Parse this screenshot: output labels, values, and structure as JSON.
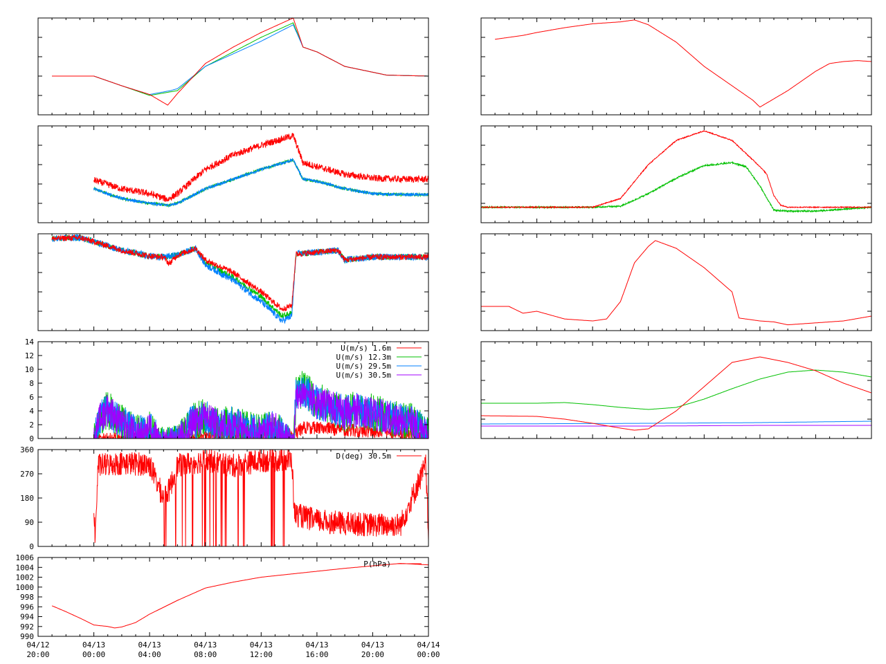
{
  "time_axis": {
    "range_hours": [
      -4,
      24
    ],
    "labels": [
      {
        "hour": -4,
        "date": "04/12",
        "time": "20:00"
      },
      {
        "hour": 0,
        "date": "04/13",
        "time": "00:00"
      },
      {
        "hour": 4,
        "date": "04/13",
        "time": "04:00"
      },
      {
        "hour": 8,
        "date": "04/13",
        "time": "08:00"
      },
      {
        "hour": 12,
        "date": "04/13",
        "time": "12:00"
      },
      {
        "hour": 16,
        "date": "04/13",
        "time": "16:00"
      },
      {
        "hour": 20,
        "date": "04/13",
        "time": "20:00"
      },
      {
        "hour": 24,
        "date": "04/14",
        "time": "00:00"
      }
    ]
  },
  "colors": {
    "red": "#ff0000",
    "green": "#00c000",
    "blue": "#0080ff",
    "purple": "#a000ff"
  },
  "chart_data": [
    {
      "id": "L1",
      "type": "line",
      "ylim": [
        0,
        10
      ],
      "series": [
        {
          "color": "#00c000",
          "x": [
            -3,
            0,
            2,
            4,
            6,
            8,
            10,
            12,
            14.3,
            15,
            16,
            18,
            21,
            24
          ],
          "y": [
            4,
            4,
            3,
            2,
            2.5,
            5,
            6.5,
            8,
            9.5,
            7,
            6.5,
            5,
            4.1,
            4
          ]
        },
        {
          "color": "#0080ff",
          "x": [
            -3,
            0,
            2,
            4,
            5.5,
            6,
            8,
            10,
            12,
            14.3,
            15,
            16,
            18,
            21,
            24
          ],
          "y": [
            4,
            4,
            3,
            2.1,
            2.5,
            2.7,
            5,
            6.3,
            7.6,
            9.3,
            7,
            6.5,
            5,
            4.1,
            4
          ]
        },
        {
          "color": "#ff0000",
          "x": [
            -3,
            0,
            2,
            4,
            5.3,
            6,
            8,
            10,
            12,
            14.3,
            15,
            16,
            18,
            21,
            24
          ],
          "y": [
            4,
            4,
            3,
            2.1,
            1,
            2.2,
            5.3,
            7,
            8.5,
            10,
            7,
            6.5,
            5,
            4.1,
            4
          ]
        }
      ]
    },
    {
      "id": "L2",
      "type": "line",
      "ylim": [
        0,
        10
      ],
      "series": [
        {
          "color": "#00c000",
          "x": [
            0,
            2,
            4,
            5.3,
            6,
            8,
            10,
            12,
            14.3,
            15,
            16,
            18,
            20,
            22,
            24
          ],
          "y": [
            3.5,
            2.5,
            2,
            1.8,
            2,
            3.5,
            4.5,
            5.5,
            6.5,
            4.5,
            4.3,
            3.5,
            3,
            2.9,
            2.9
          ]
        },
        {
          "color": "#0080ff",
          "x": [
            0,
            2,
            4,
            5.3,
            6,
            8,
            10,
            12,
            14.3,
            15,
            16,
            18,
            20,
            22,
            24
          ],
          "y": [
            3.5,
            2.5,
            2,
            1.8,
            2,
            3.5,
            4.5,
            5.5,
            6.5,
            4.5,
            4.3,
            3.5,
            3,
            2.9,
            2.9
          ]
        },
        {
          "color": "#ff0000",
          "x": [
            0,
            2,
            4,
            5.3,
            6,
            8,
            10,
            12,
            14.3,
            15,
            16,
            18,
            20,
            22,
            24
          ],
          "y": [
            4.4,
            3.5,
            3,
            2.4,
            3,
            5.5,
            7,
            8,
            9,
            6.2,
            5.8,
            5,
            4.6,
            4.5,
            4.5
          ]
        }
      ]
    },
    {
      "id": "L3",
      "type": "line",
      "ylim": [
        0,
        10
      ],
      "series": [
        {
          "color": "#00c000",
          "x": [
            -3,
            -1,
            0,
            2,
            4,
            5,
            6,
            7.3,
            8,
            10,
            12,
            13.5,
            14.2,
            14.5,
            16,
            17.5,
            18,
            20,
            24
          ],
          "y": [
            9.5,
            9.6,
            9.2,
            8.3,
            7.7,
            7.6,
            7.8,
            8.5,
            7,
            5.5,
            3.5,
            1.5,
            1.8,
            7.9,
            8.1,
            8.3,
            7.3,
            7.6,
            7.6
          ]
        },
        {
          "color": "#0080ff",
          "x": [
            -3,
            -1,
            0,
            2,
            4,
            5,
            6,
            7.3,
            8,
            10,
            12,
            13.5,
            14.2,
            14.5,
            16,
            17.5,
            18,
            20,
            24
          ],
          "y": [
            9.5,
            9.6,
            9.2,
            8.3,
            7.7,
            7.6,
            7.8,
            8.5,
            6.8,
            5.2,
            3,
            1,
            1.5,
            7.9,
            8.1,
            8.3,
            7.3,
            7.6,
            7.6
          ]
        },
        {
          "color": "#ff0000",
          "x": [
            -3,
            -1,
            0,
            2,
            4,
            5,
            5.4,
            6,
            7.3,
            8,
            10,
            12,
            13.5,
            14.2,
            14.5,
            16,
            17.5,
            18,
            20,
            24
          ],
          "y": [
            9.5,
            9.6,
            9.2,
            8.3,
            7.7,
            7.6,
            6.9,
            7.8,
            8.5,
            7.3,
            6,
            4,
            2.2,
            2.6,
            7.9,
            8.1,
            8.3,
            7.3,
            7.6,
            7.6
          ]
        }
      ]
    },
    {
      "id": "U",
      "type": "line",
      "ylim": [
        0,
        14
      ],
      "yticks": [
        "0",
        "2",
        "4",
        "6",
        "8",
        "10",
        "12",
        "14"
      ],
      "legend": "top-right",
      "series": [
        {
          "name": "U(m/s)  1.6m",
          "color": "#ff0000",
          "x": [
            0,
            2,
            4,
            6,
            8,
            10,
            12,
            14.4,
            15,
            16,
            18,
            20,
            22,
            24
          ],
          "y": [
            0.8,
            1,
            0.7,
            0.6,
            1.5,
            1.5,
            1.6,
            1.6,
            2.5,
            2.5,
            2.2,
            2,
            1.8,
            1
          ]
        },
        {
          "name": "U(m/s) 12.3m",
          "color": "#00c000",
          "x": [
            0,
            0.5,
            1,
            2,
            3,
            4,
            5,
            6,
            7,
            8,
            9,
            10,
            11,
            12,
            13,
            14.3,
            14.5,
            15,
            16,
            17,
            18,
            19,
            20,
            21,
            22,
            23,
            24
          ],
          "y": [
            2,
            6,
            7,
            5,
            3.5,
            4,
            1.5,
            2,
            5,
            6,
            4.5,
            5,
            4,
            3.5,
            4.5,
            1,
            9,
            10,
            8,
            7.5,
            6.5,
            7,
            6.5,
            6,
            5.5,
            5,
            3
          ]
        },
        {
          "name": "U(m/s) 29.5m",
          "color": "#0080ff",
          "x": [
            0,
            0.5,
            1,
            2,
            3,
            4,
            5,
            6,
            7,
            8,
            9,
            10,
            11,
            12,
            13,
            14.3,
            14.5,
            15,
            16,
            17,
            18,
            19,
            20,
            21,
            22,
            23,
            24
          ],
          "y": [
            2,
            5.8,
            6.7,
            4.8,
            3.3,
            3.8,
            1.4,
            1.9,
            4.8,
            5.7,
            4.3,
            4.8,
            3.8,
            3.3,
            4.3,
            1,
            8.7,
            9.7,
            7.7,
            7.2,
            6.2,
            6.7,
            6.2,
            5.7,
            5.2,
            4.7,
            2.8
          ]
        },
        {
          "name": "U(m/s) 30.5m",
          "color": "#a000ff",
          "x": [
            0,
            0.5,
            1,
            2,
            3,
            4,
            5,
            6,
            7,
            8,
            9,
            10,
            11,
            12,
            13,
            14.3,
            14.5,
            15,
            16,
            17,
            18,
            19,
            20,
            21,
            22,
            23,
            24
          ],
          "y": [
            2,
            5.5,
            6.5,
            4.5,
            3,
            3.5,
            1.2,
            1.8,
            4.5,
            5.5,
            4,
            4.5,
            3.5,
            3,
            4,
            1,
            8.5,
            9.5,
            7.5,
            7,
            6,
            6.5,
            6,
            5.5,
            5,
            4.5,
            2.5
          ]
        }
      ]
    },
    {
      "id": "D",
      "type": "line",
      "ylim": [
        0,
        360
      ],
      "yticks": [
        "0",
        "90",
        "180",
        "270",
        "360"
      ],
      "legend": "top-right",
      "series": [
        {
          "name": "D(deg)  30.5m",
          "color": "#ff0000",
          "x": [
            0,
            0.1,
            0.3,
            2,
            4,
            4.5,
            5,
            5.4,
            6,
            8,
            10,
            12,
            14.2,
            14.4,
            16,
            18,
            20,
            22,
            23.8,
            24
          ],
          "y": [
            140,
            30,
            300,
            310,
            305,
            240,
            180,
            210,
            300,
            320,
            300,
            320,
            320,
            120,
            95,
            85,
            80,
            80,
            300,
            60
          ]
        }
      ]
    },
    {
      "id": "P",
      "type": "line",
      "ylim": [
        990,
        1006
      ],
      "yticks": [
        "990",
        "992",
        "994",
        "996",
        "998",
        "1000",
        "1002",
        "1004",
        "1006"
      ],
      "legend": "top-right",
      "series": [
        {
          "name": "P(hPa)",
          "color": "#ff0000",
          "x": [
            -3,
            -2,
            -1,
            0,
            1,
            1.5,
            2,
            3,
            4,
            6,
            8,
            10,
            12,
            14,
            16,
            18,
            20,
            22,
            24
          ],
          "y": [
            996.2,
            995,
            993.7,
            992.3,
            992,
            991.7,
            991.9,
            992.8,
            994.5,
            997.3,
            999.8,
            1001,
            1002,
            1002.6,
            1003.2,
            1003.8,
            1004.3,
            1004.8,
            1004.5
          ]
        }
      ]
    },
    {
      "id": "R1",
      "type": "line",
      "ylim": [
        0,
        10
      ],
      "series": [
        {
          "color": "#ff0000",
          "x": [
            -3,
            -1,
            0,
            2,
            4,
            6,
            7,
            8,
            10,
            12,
            14,
            15.5,
            16,
            18,
            19,
            20,
            21,
            22,
            23,
            24
          ],
          "y": [
            7.8,
            8.2,
            8.5,
            9,
            9.4,
            9.6,
            9.8,
            9.3,
            7.5,
            5,
            3,
            1.5,
            0.8,
            2.5,
            3.5,
            4.5,
            5.3,
            5.5,
            5.6,
            5.5
          ]
        }
      ]
    },
    {
      "id": "R2",
      "type": "line",
      "ylim": [
        0,
        10
      ],
      "series": [
        {
          "color": "#00c000",
          "x": [
            -4,
            2,
            4,
            6,
            8,
            10,
            12,
            14,
            15,
            16,
            17,
            18,
            20,
            22,
            24
          ],
          "y": [
            1.6,
            1.6,
            1.6,
            1.7,
            3,
            4.6,
            5.9,
            6.2,
            5.8,
            3.8,
            1.3,
            1.2,
            1.2,
            1.4,
            1.6
          ]
        },
        {
          "color": "#ff0000",
          "x": [
            -4,
            2,
            4,
            6,
            8,
            10,
            12,
            14,
            16,
            16.5,
            17,
            17.5,
            18,
            20,
            22,
            24
          ],
          "y": [
            1.6,
            1.6,
            1.6,
            2.5,
            6,
            8.5,
            9.5,
            8.5,
            5.8,
            5,
            2.8,
            1.8,
            1.6,
            1.6,
            1.6,
            1.6
          ]
        }
      ]
    },
    {
      "id": "R3",
      "type": "line",
      "ylim": [
        0,
        10
      ],
      "series": [
        {
          "color": "#ff0000",
          "x": [
            -4,
            -2,
            -1,
            0,
            1,
            2,
            4,
            5,
            6,
            7,
            8,
            8.5,
            10,
            12,
            14,
            14.5,
            16,
            17,
            18,
            20,
            22,
            24
          ],
          "y": [
            2.5,
            2.5,
            1.8,
            2,
            1.6,
            1.2,
            1,
            1.2,
            3,
            7,
            8.7,
            9.3,
            8.5,
            6.5,
            4,
            1.3,
            1,
            0.9,
            0.6,
            0.8,
            1,
            1.5
          ]
        }
      ]
    },
    {
      "id": "R4",
      "type": "line",
      "ylim": [
        0,
        14
      ],
      "series": [
        {
          "color": "#00c000",
          "x": [
            -4,
            0,
            2,
            4,
            6,
            8,
            10,
            12,
            14,
            16,
            18,
            20,
            22,
            24
          ],
          "y": [
            5.1,
            5.1,
            5.2,
            4.9,
            4.5,
            4.2,
            4.5,
            5.7,
            7.2,
            8.6,
            9.6,
            9.9,
            9.6,
            8.9
          ]
        },
        {
          "color": "#0080ff",
          "x": [
            -4,
            8,
            16,
            24
          ],
          "y": [
            2.1,
            2.2,
            2.3,
            2.5
          ]
        },
        {
          "color": "#a000ff",
          "x": [
            -4,
            8,
            16,
            24
          ],
          "y": [
            1.8,
            1.8,
            1.9,
            1.9
          ]
        },
        {
          "color": "#ff0000",
          "x": [
            -4,
            0,
            2,
            4,
            6,
            7,
            8,
            10,
            12,
            14,
            16,
            18,
            20,
            22,
            24
          ],
          "y": [
            3.3,
            3.2,
            2.8,
            2.2,
            1.5,
            1.2,
            1.4,
            4,
            7.5,
            11,
            11.8,
            11,
            9.8,
            8,
            6.6
          ]
        }
      ]
    }
  ]
}
